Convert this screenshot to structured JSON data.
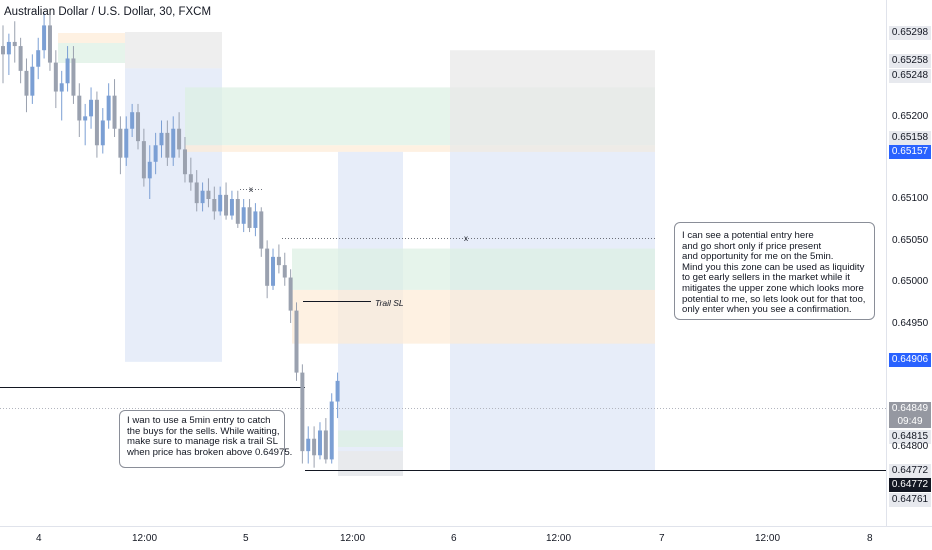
{
  "title": "Australian Dollar / U.S. Dollar, 30, FXCM",
  "colors": {
    "up": "#7b9fd4",
    "down": "#9aa1af",
    "blue_zone": "#dde6f6",
    "green_zone": "#dcefe2",
    "orange_zone": "#fdebd6",
    "gray_zone": "#e8e8e8",
    "highlight_label": "#2962ff"
  },
  "chart_data": {
    "type": "candlestick",
    "symbol": "Australian Dollar / U.S. Dollar",
    "timeframe": "30",
    "source": "FXCM",
    "y_axis": {
      "ticks": [
        "0.65200",
        "0.65100",
        "0.65050",
        "0.65000",
        "0.64950",
        "0.64800"
      ],
      "labels": [
        {
          "value": "0.65298"
        },
        {
          "value": "0.65258"
        },
        {
          "value": "0.65248"
        },
        {
          "value": "0.65158"
        },
        {
          "value": "0.65157",
          "highlight": true
        },
        {
          "value": "0.64906",
          "highlight": true
        },
        {
          "value": "0.64849",
          "sub": "09:49"
        },
        {
          "value": "0.64815"
        },
        {
          "value": "0.64772"
        },
        {
          "value": "0.64772",
          "dark": true
        },
        {
          "value": "0.64761"
        }
      ]
    },
    "x_axis": {
      "ticks": [
        "4",
        "12:00",
        "5",
        "12:00",
        "6",
        "12:00",
        "7",
        "12:00",
        "8"
      ]
    },
    "lines": [
      {
        "name": "horizontal-line-left",
        "y": 0.64872
      },
      {
        "name": "horizontal-line-bottom",
        "y": 0.64772
      },
      {
        "name": "entry-dotted-line",
        "y": 0.65053
      }
    ],
    "zones": [
      {
        "name": "gray-zone-top-left",
        "color": "gray",
        "y1": 0.65302,
        "y2": 0.65258
      },
      {
        "name": "blue-zone-left",
        "color": "blue",
        "y1": 0.65258,
        "y2": 0.64903
      },
      {
        "name": "green-zone-upper",
        "color": "green",
        "y1": 0.65235,
        "y2": 0.65165
      },
      {
        "name": "orange-zone-upper",
        "color": "orange",
        "y1": 0.65165,
        "y2": 0.65157
      },
      {
        "name": "gray-zone-right",
        "color": "gray",
        "y1": 0.6528,
        "y2": 0.65157
      },
      {
        "name": "blue-zone-right",
        "color": "blue",
        "y1": 0.65157,
        "y2": 0.64772
      },
      {
        "name": "blue-zone-middle",
        "color": "blue",
        "y1": 0.65157,
        "y2": 0.64765
      },
      {
        "name": "green-zone-lower",
        "color": "green",
        "y1": 0.6504,
        "y2": 0.6499
      },
      {
        "name": "orange-zone-lower",
        "color": "orange",
        "y1": 0.6499,
        "y2": 0.64925
      },
      {
        "name": "green-zone-bottom",
        "color": "green",
        "y1": 0.6482,
        "y2": 0.648
      },
      {
        "name": "gray-zone-bottom",
        "color": "gray",
        "y1": 0.64795,
        "y2": 0.64765
      }
    ],
    "candles": [
      {
        "o": 0.65285,
        "h": 0.6531,
        "l": 0.6524,
        "c": 0.65275
      },
      {
        "o": 0.65275,
        "h": 0.653,
        "l": 0.6525,
        "c": 0.6529
      },
      {
        "o": 0.6529,
        "h": 0.65315,
        "l": 0.65265,
        "c": 0.65285
      },
      {
        "o": 0.65285,
        "h": 0.65295,
        "l": 0.6524,
        "c": 0.65255
      },
      {
        "o": 0.65255,
        "h": 0.6527,
        "l": 0.65205,
        "c": 0.65225
      },
      {
        "o": 0.65225,
        "h": 0.65275,
        "l": 0.65215,
        "c": 0.6526
      },
      {
        "o": 0.6526,
        "h": 0.65295,
        "l": 0.65245,
        "c": 0.6528
      },
      {
        "o": 0.6528,
        "h": 0.65325,
        "l": 0.6527,
        "c": 0.6531
      },
      {
        "o": 0.6531,
        "h": 0.65325,
        "l": 0.65255,
        "c": 0.65265
      },
      {
        "o": 0.65265,
        "h": 0.6528,
        "l": 0.6521,
        "c": 0.6523
      },
      {
        "o": 0.6523,
        "h": 0.65255,
        "l": 0.65195,
        "c": 0.6524
      },
      {
        "o": 0.6524,
        "h": 0.65285,
        "l": 0.6523,
        "c": 0.6527
      },
      {
        "o": 0.6527,
        "h": 0.65285,
        "l": 0.65215,
        "c": 0.65225
      },
      {
        "o": 0.65225,
        "h": 0.6524,
        "l": 0.65175,
        "c": 0.65195
      },
      {
        "o": 0.65195,
        "h": 0.65215,
        "l": 0.65165,
        "c": 0.652
      },
      {
        "o": 0.652,
        "h": 0.65235,
        "l": 0.65185,
        "c": 0.6522
      },
      {
        "o": 0.6522,
        "h": 0.6523,
        "l": 0.6515,
        "c": 0.65165
      },
      {
        "o": 0.65165,
        "h": 0.6521,
        "l": 0.65155,
        "c": 0.65195
      },
      {
        "o": 0.65195,
        "h": 0.6524,
        "l": 0.65185,
        "c": 0.65225
      },
      {
        "o": 0.65225,
        "h": 0.65245,
        "l": 0.65175,
        "c": 0.65185
      },
      {
        "o": 0.65185,
        "h": 0.652,
        "l": 0.6513,
        "c": 0.6515
      },
      {
        "o": 0.6515,
        "h": 0.652,
        "l": 0.6514,
        "c": 0.65185
      },
      {
        "o": 0.65185,
        "h": 0.65215,
        "l": 0.65175,
        "c": 0.65205
      },
      {
        "o": 0.65205,
        "h": 0.65215,
        "l": 0.6516,
        "c": 0.6517
      },
      {
        "o": 0.6517,
        "h": 0.65185,
        "l": 0.65115,
        "c": 0.65125
      },
      {
        "o": 0.65125,
        "h": 0.65165,
        "l": 0.651,
        "c": 0.65145
      },
      {
        "o": 0.65145,
        "h": 0.6518,
        "l": 0.6513,
        "c": 0.65165
      },
      {
        "o": 0.65165,
        "h": 0.65195,
        "l": 0.6515,
        "c": 0.6518
      },
      {
        "o": 0.6518,
        "h": 0.65195,
        "l": 0.6514,
        "c": 0.6515
      },
      {
        "o": 0.6515,
        "h": 0.652,
        "l": 0.6514,
        "c": 0.65185
      },
      {
        "o": 0.65185,
        "h": 0.65205,
        "l": 0.6515,
        "c": 0.6516
      },
      {
        "o": 0.6516,
        "h": 0.65175,
        "l": 0.6512,
        "c": 0.6513
      },
      {
        "o": 0.6513,
        "h": 0.6515,
        "l": 0.6511,
        "c": 0.6512
      },
      {
        "o": 0.6512,
        "h": 0.65135,
        "l": 0.65085,
        "c": 0.65095
      },
      {
        "o": 0.65095,
        "h": 0.6512,
        "l": 0.65085,
        "c": 0.6511
      },
      {
        "o": 0.6511,
        "h": 0.65125,
        "l": 0.6509,
        "c": 0.651
      },
      {
        "o": 0.651,
        "h": 0.65115,
        "l": 0.65075,
        "c": 0.65085
      },
      {
        "o": 0.65085,
        "h": 0.65115,
        "l": 0.6508,
        "c": 0.65105
      },
      {
        "o": 0.65105,
        "h": 0.6512,
        "l": 0.65075,
        "c": 0.6508
      },
      {
        "o": 0.6508,
        "h": 0.6511,
        "l": 0.65075,
        "c": 0.651
      },
      {
        "o": 0.651,
        "h": 0.6511,
        "l": 0.65065,
        "c": 0.6507
      },
      {
        "o": 0.6507,
        "h": 0.651,
        "l": 0.6506,
        "c": 0.6509
      },
      {
        "o": 0.6509,
        "h": 0.651,
        "l": 0.6506,
        "c": 0.65065
      },
      {
        "o": 0.65065,
        "h": 0.65095,
        "l": 0.65055,
        "c": 0.65085
      },
      {
        "o": 0.65085,
        "h": 0.6509,
        "l": 0.6503,
        "c": 0.6504
      },
      {
        "o": 0.6504,
        "h": 0.6505,
        "l": 0.6498,
        "c": 0.64995
      },
      {
        "o": 0.64995,
        "h": 0.6504,
        "l": 0.6499,
        "c": 0.6503
      },
      {
        "o": 0.6503,
        "h": 0.65045,
        "l": 0.6501,
        "c": 0.6502
      },
      {
        "o": 0.6502,
        "h": 0.65035,
        "l": 0.64995,
        "c": 0.65005
      },
      {
        "o": 0.65005,
        "h": 0.65015,
        "l": 0.6495,
        "c": 0.64965
      },
      {
        "o": 0.64965,
        "h": 0.64975,
        "l": 0.6488,
        "c": 0.6489
      },
      {
        "o": 0.6489,
        "h": 0.649,
        "l": 0.6478,
        "c": 0.64795
      },
      {
        "o": 0.64795,
        "h": 0.64825,
        "l": 0.6478,
        "c": 0.6481
      },
      {
        "o": 0.6481,
        "h": 0.64825,
        "l": 0.64775,
        "c": 0.6479
      },
      {
        "o": 0.6479,
        "h": 0.6483,
        "l": 0.64785,
        "c": 0.6482
      },
      {
        "o": 0.6482,
        "h": 0.64835,
        "l": 0.6478,
        "c": 0.64785
      },
      {
        "o": 0.64785,
        "h": 0.64865,
        "l": 0.6478,
        "c": 0.64855
      },
      {
        "o": 0.64855,
        "h": 0.6489,
        "l": 0.64835,
        "c": 0.6488
      }
    ]
  },
  "annotations": {
    "left_note": [
      "I wan to use a 5min entry to catch",
      "the buys for the sells. While waiting,",
      "make sure to manage risk a trail SL",
      "when price has broken above 0.64975."
    ],
    "right_note": [
      "I can see a potential entry here",
      "and go short only if price present",
      "and opportunity for me on the 5min.",
      "Mind you this zone can be used as liquidity",
      "to get early sellers in the market while it",
      "mitigates the upper zone which looks more",
      "potential to me, so lets look out for that too,",
      "only enter when you see a confirmation."
    ],
    "trail_label": "Trail SL",
    "x_marker": "x"
  }
}
